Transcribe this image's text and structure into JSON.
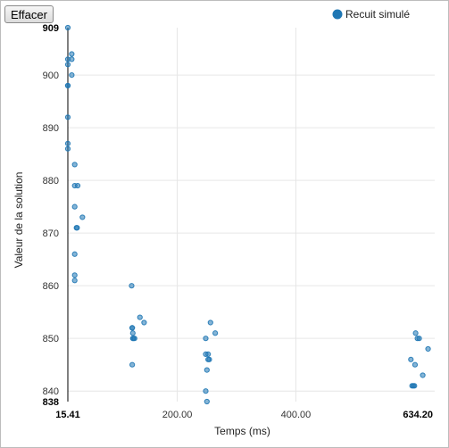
{
  "toolbar": {
    "clear_label": "Effacer"
  },
  "chart_data": {
    "type": "scatter",
    "title": "",
    "xlabel": "Temps (ms)",
    "ylabel": "Valeur de la solution",
    "xlim": [
      15.41,
      634.2
    ],
    "ylim": [
      838,
      909
    ],
    "x_ticks": [
      {
        "value": 15.41,
        "label": "15.41",
        "bold": true
      },
      {
        "value": 200,
        "label": "200.00",
        "bold": false
      },
      {
        "value": 400,
        "label": "400.00",
        "bold": false
      },
      {
        "value": 634.2,
        "label": "634.20",
        "bold": true
      }
    ],
    "y_ticks": [
      {
        "value": 838,
        "label": "838",
        "bold": true
      },
      {
        "value": 840,
        "label": "840",
        "bold": false
      },
      {
        "value": 850,
        "label": "850",
        "bold": false
      },
      {
        "value": 860,
        "label": "860",
        "bold": false
      },
      {
        "value": 870,
        "label": "870",
        "bold": false
      },
      {
        "value": 880,
        "label": "880",
        "bold": false
      },
      {
        "value": 890,
        "label": "890",
        "bold": false
      },
      {
        "value": 900,
        "label": "900",
        "bold": false
      },
      {
        "value": 909,
        "label": "909",
        "bold": true
      }
    ],
    "grid": true,
    "legend_position": "top-right",
    "colors": {
      "series": "#1f77b4",
      "grid": "#e6e6e6",
      "axis": "#000000"
    },
    "series": [
      {
        "name": "Recuit simulé",
        "points": [
          [
            15.41,
            909
          ],
          [
            15.41,
            903
          ],
          [
            15.41,
            902
          ],
          [
            15.41,
            898
          ],
          [
            15.41,
            892
          ],
          [
            15.41,
            887
          ],
          [
            15.41,
            886
          ],
          [
            15.41,
            898
          ],
          [
            22,
            904
          ],
          [
            22,
            903
          ],
          [
            22,
            900
          ],
          [
            27,
            883
          ],
          [
            27,
            879
          ],
          [
            27,
            875
          ],
          [
            27,
            866
          ],
          [
            27,
            862
          ],
          [
            27,
            861
          ],
          [
            30,
            871
          ],
          [
            31,
            871
          ],
          [
            32,
            879
          ],
          [
            40,
            873
          ],
          [
            123,
            860
          ],
          [
            124,
            852
          ],
          [
            124,
            845
          ],
          [
            124,
            852
          ],
          [
            125,
            851
          ],
          [
            125,
            850
          ],
          [
            126,
            850
          ],
          [
            128,
            850
          ],
          [
            137,
            854
          ],
          [
            144,
            853
          ],
          [
            248,
            850
          ],
          [
            248,
            847
          ],
          [
            248,
            840
          ],
          [
            250,
            838
          ],
          [
            250,
            844
          ],
          [
            252,
            847
          ],
          [
            252,
            846
          ],
          [
            254,
            846
          ],
          [
            256,
            853
          ],
          [
            264,
            851
          ],
          [
            594,
            846
          ],
          [
            596,
            841
          ],
          [
            598,
            841
          ],
          [
            600,
            841
          ],
          [
            601,
            845
          ],
          [
            602,
            851
          ],
          [
            605,
            850
          ],
          [
            608,
            850
          ],
          [
            614,
            843
          ],
          [
            623,
            848
          ]
        ]
      }
    ]
  }
}
